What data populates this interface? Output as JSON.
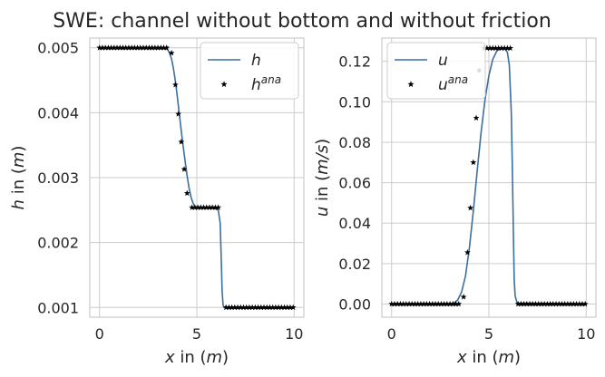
{
  "figure": {
    "title": "SWE: channel without bottom and without friction"
  },
  "chart_data": [
    {
      "type": "line",
      "xlabel": "x in (m)",
      "ylabel": "h in (m)",
      "xlim": [
        -0.5,
        10.5
      ],
      "ylim": [
        0.00085,
        0.00515
      ],
      "xticks": [
        0,
        5,
        10
      ],
      "xtick_labels": [
        "0",
        "5",
        "10"
      ],
      "yticks": [
        0.001,
        0.002,
        0.003,
        0.004,
        0.005
      ],
      "ytick_labels": [
        "0.001",
        "0.002",
        "0.003",
        "0.004",
        "0.005"
      ],
      "grid": true,
      "legend_position": "top-right",
      "series": [
        {
          "name": "h",
          "kind": "line",
          "color": "#3a6f9f",
          "x": [
            0,
            3.2,
            3.4,
            3.5,
            3.6,
            3.7,
            3.8,
            3.9,
            4.0,
            4.1,
            4.2,
            4.3,
            4.4,
            4.5,
            4.6,
            4.7,
            4.8,
            4.9,
            5.0,
            5.1,
            5.3,
            5.6,
            5.9,
            6.1,
            6.2,
            6.25,
            6.3,
            6.35,
            6.4,
            6.5,
            10
          ],
          "y": [
            0.005,
            0.005,
            0.00499,
            0.00497,
            0.00492,
            0.00483,
            0.00468,
            0.00448,
            0.00424,
            0.00398,
            0.00372,
            0.00348,
            0.00325,
            0.00303,
            0.00284,
            0.0027,
            0.00261,
            0.00256,
            0.00254,
            0.00254,
            0.00254,
            0.00254,
            0.00253,
            0.0025,
            0.0023,
            0.0018,
            0.00125,
            0.00104,
            0.001,
            0.001,
            0.001
          ]
        },
        {
          "name": "h^ana",
          "kind": "scatter",
          "marker": "star",
          "color": "#000000",
          "x": [
            0,
            0.15,
            0.3,
            0.45,
            0.6,
            0.75,
            0.9,
            1.05,
            1.2,
            1.35,
            1.5,
            1.65,
            1.8,
            1.95,
            2.1,
            2.25,
            2.4,
            2.55,
            2.7,
            2.85,
            3.0,
            3.15,
            3.3,
            3.45,
            3.7,
            3.9,
            4.05,
            4.2,
            4.35,
            4.5,
            4.75,
            4.9,
            5.05,
            5.2,
            5.35,
            5.5,
            5.65,
            5.8,
            5.95,
            6.1,
            6.5,
            6.65,
            6.8,
            6.95,
            7.1,
            7.25,
            7.4,
            7.55,
            7.7,
            7.85,
            8.0,
            8.15,
            8.3,
            8.45,
            8.6,
            8.75,
            8.9,
            9.05,
            9.2,
            9.35,
            9.5,
            9.65,
            9.8,
            9.95
          ],
          "y": [
            0.005,
            0.005,
            0.005,
            0.005,
            0.005,
            0.005,
            0.005,
            0.005,
            0.005,
            0.005,
            0.005,
            0.005,
            0.005,
            0.005,
            0.005,
            0.005,
            0.005,
            0.005,
            0.005,
            0.005,
            0.005,
            0.005,
            0.005,
            0.005,
            0.00492,
            0.00443,
            0.00398,
            0.00355,
            0.00313,
            0.00276,
            0.00254,
            0.00254,
            0.00254,
            0.00254,
            0.00254,
            0.00254,
            0.00254,
            0.00254,
            0.00254,
            0.00254,
            0.001,
            0.001,
            0.001,
            0.001,
            0.001,
            0.001,
            0.001,
            0.001,
            0.001,
            0.001,
            0.001,
            0.001,
            0.001,
            0.001,
            0.001,
            0.001,
            0.001,
            0.001,
            0.001,
            0.001,
            0.001,
            0.001,
            0.001,
            0.001
          ]
        }
      ]
    },
    {
      "type": "line",
      "xlabel": "x in (m)",
      "ylabel": "u in (m/s)",
      "xlim": [
        -0.5,
        10.5
      ],
      "ylim": [
        -0.0065,
        0.1315
      ],
      "xticks": [
        0,
        5,
        10
      ],
      "xtick_labels": [
        "0",
        "5",
        "10"
      ],
      "yticks": [
        0.0,
        0.02,
        0.04,
        0.06,
        0.08,
        0.1,
        0.12
      ],
      "ytick_labels": [
        "0.00",
        "0.02",
        "0.04",
        "0.06",
        "0.08",
        "0.10",
        "0.12"
      ],
      "grid": true,
      "legend_position": "top-left",
      "series": [
        {
          "name": "u",
          "kind": "line",
          "color": "#3a6f9f",
          "x": [
            0,
            3.0,
            3.2,
            3.4,
            3.6,
            3.8,
            4.0,
            4.2,
            4.4,
            4.6,
            4.8,
            5.0,
            5.2,
            5.4,
            5.6,
            5.8,
            5.95,
            6.05,
            6.15,
            6.2,
            6.25,
            6.3,
            6.35,
            6.45,
            10
          ],
          "y": [
            0,
            0,
            0.0005,
            0.002,
            0.006,
            0.014,
            0.028,
            0.046,
            0.066,
            0.085,
            0.101,
            0.113,
            0.121,
            0.125,
            0.1265,
            0.1265,
            0.1245,
            0.118,
            0.095,
            0.07,
            0.04,
            0.012,
            0.004,
            0.0005,
            0
          ]
        },
        {
          "name": "u^ana",
          "kind": "scatter",
          "marker": "star",
          "color": "#000000",
          "x": [
            0,
            0.15,
            0.3,
            0.45,
            0.6,
            0.75,
            0.9,
            1.05,
            1.2,
            1.35,
            1.5,
            1.65,
            1.8,
            1.95,
            2.1,
            2.25,
            2.4,
            2.55,
            2.7,
            2.85,
            3.0,
            3.15,
            3.3,
            3.45,
            3.7,
            3.9,
            4.05,
            4.2,
            4.35,
            4.5,
            4.75,
            4.9,
            5.05,
            5.2,
            5.35,
            5.5,
            5.65,
            5.8,
            5.95,
            6.1,
            6.5,
            6.65,
            6.8,
            6.95,
            7.1,
            7.25,
            7.4,
            7.55,
            7.7,
            7.85,
            8.0,
            8.15,
            8.3,
            8.45,
            8.6,
            8.75,
            8.9,
            9.05,
            9.2,
            9.35,
            9.5,
            9.65,
            9.8,
            9.95
          ],
          "y": [
            0,
            0,
            0,
            0,
            0,
            0,
            0,
            0,
            0,
            0,
            0,
            0,
            0,
            0,
            0,
            0,
            0,
            0,
            0,
            0,
            0,
            0,
            0,
            0,
            0.0035,
            0.0255,
            0.0475,
            0.07,
            0.092,
            0.1155,
            0.1265,
            0.1265,
            0.1265,
            0.1265,
            0.1265,
            0.1265,
            0.1265,
            0.1265,
            0.1265,
            0.1265,
            0,
            0,
            0,
            0,
            0,
            0,
            0,
            0,
            0,
            0,
            0,
            0,
            0,
            0,
            0,
            0,
            0,
            0,
            0,
            0,
            0,
            0,
            0,
            0
          ]
        }
      ]
    }
  ]
}
